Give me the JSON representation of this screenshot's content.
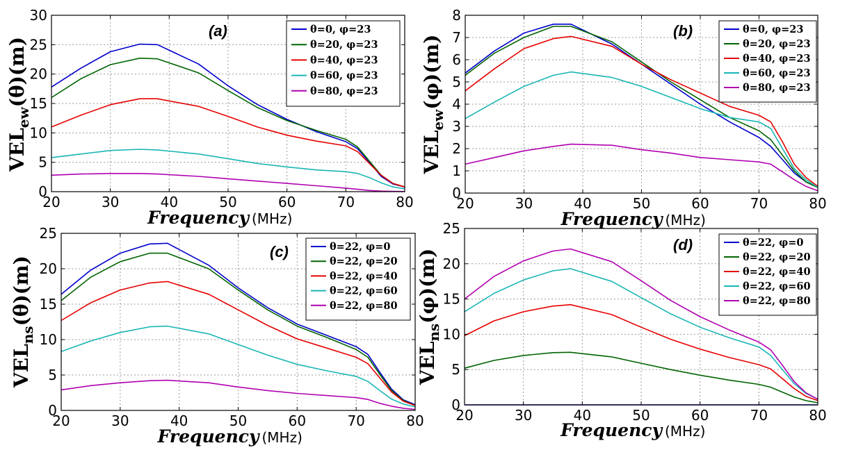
{
  "figure": {
    "x_unit": "(MHz)"
  },
  "chart_data": [
    {
      "type": "line",
      "panel_label": "(a)",
      "title": "",
      "ylabel_main": "VEL",
      "ylabel_sub": "ew",
      "ylabel_arg": "(θ)(m)",
      "xlabel": "Frequency",
      "xlim": [
        20,
        80
      ],
      "ylim": [
        0,
        30
      ],
      "xticks": [
        20,
        30,
        40,
        50,
        60,
        70,
        80
      ],
      "yticks": [
        0,
        5,
        10,
        15,
        20,
        25,
        30
      ],
      "grid": true,
      "legend_position": "top-right",
      "x": [
        20,
        25,
        30,
        35,
        38,
        45,
        50,
        55,
        60,
        65,
        70,
        72,
        74,
        76,
        78,
        80
      ],
      "series": [
        {
          "name": "θ=0, φ=23",
          "color": "#0000cc",
          "values": [
            17.8,
            21.0,
            23.8,
            25.1,
            25.0,
            21.7,
            18.0,
            14.8,
            12.3,
            10.2,
            8.5,
            7.3,
            5.0,
            2.6,
            1.3,
            0.8
          ]
        },
        {
          "name": "θ=20, φ=23",
          "color": "#006400",
          "values": [
            16.0,
            19.2,
            21.6,
            22.7,
            22.6,
            20.2,
            17.2,
            14.3,
            12.1,
            10.4,
            8.9,
            7.6,
            5.2,
            2.8,
            1.4,
            0.8
          ]
        },
        {
          "name": "θ=40, φ=23",
          "color": "#e60000",
          "values": [
            11.0,
            13.0,
            14.8,
            15.8,
            15.8,
            14.5,
            12.8,
            11.0,
            9.6,
            8.6,
            7.8,
            6.8,
            4.8,
            2.8,
            1.4,
            0.8
          ]
        },
        {
          "name": "θ=60, φ=23",
          "color": "#1ab5b5",
          "values": [
            5.8,
            6.4,
            7.0,
            7.2,
            7.1,
            6.4,
            5.6,
            4.8,
            4.2,
            3.7,
            3.4,
            3.1,
            2.4,
            1.5,
            0.8,
            0.5
          ]
        },
        {
          "name": "θ=80, φ=23",
          "color": "#b000b0",
          "values": [
            2.8,
            3.0,
            3.1,
            3.1,
            3.0,
            2.6,
            2.2,
            1.8,
            1.4,
            1.0,
            0.6,
            0.4,
            0.2,
            0.1,
            0.05,
            0.02
          ]
        }
      ]
    },
    {
      "type": "line",
      "panel_label": "(b)",
      "title": "",
      "ylabel_main": "VEL",
      "ylabel_sub": "ew",
      "ylabel_arg": "(φ)(m)",
      "xlabel": "Frequency",
      "xlim": [
        20,
        80
      ],
      "ylim": [
        0,
        8
      ],
      "xticks": [
        20,
        30,
        40,
        50,
        60,
        70,
        80
      ],
      "yticks": [
        0,
        1,
        2,
        3,
        4,
        5,
        6,
        7,
        8
      ],
      "grid": true,
      "legend_position": "top-right",
      "x": [
        20,
        25,
        30,
        35,
        38,
        45,
        50,
        55,
        60,
        65,
        70,
        72,
        74,
        76,
        78,
        80
      ],
      "series": [
        {
          "name": "θ=0, φ=23",
          "color": "#0000cc",
          "values": [
            5.4,
            6.4,
            7.2,
            7.6,
            7.6,
            6.7,
            5.8,
            4.9,
            4.0,
            3.2,
            2.5,
            2.1,
            1.5,
            0.9,
            0.5,
            0.25
          ]
        },
        {
          "name": "θ=20, φ=23",
          "color": "#006400",
          "values": [
            5.3,
            6.3,
            7.0,
            7.5,
            7.5,
            6.8,
            5.9,
            5.0,
            4.2,
            3.4,
            2.8,
            2.4,
            1.7,
            1.0,
            0.5,
            0.25
          ]
        },
        {
          "name": "θ=40, φ=23",
          "color": "#e60000",
          "values": [
            4.6,
            5.6,
            6.5,
            6.95,
            7.05,
            6.6,
            5.8,
            5.1,
            4.5,
            3.9,
            3.5,
            3.2,
            2.3,
            1.3,
            0.7,
            0.3
          ]
        },
        {
          "name": "θ=60, φ=23",
          "color": "#1ab5b5",
          "values": [
            3.35,
            4.1,
            4.8,
            5.3,
            5.45,
            5.2,
            4.8,
            4.3,
            3.8,
            3.4,
            3.2,
            2.9,
            2.0,
            1.1,
            0.6,
            0.25
          ]
        },
        {
          "name": "θ=80, φ=23",
          "color": "#b000b0",
          "values": [
            1.3,
            1.6,
            1.9,
            2.1,
            2.2,
            2.15,
            1.95,
            1.8,
            1.6,
            1.5,
            1.4,
            1.3,
            0.95,
            0.6,
            0.3,
            0.1
          ]
        }
      ]
    },
    {
      "type": "line",
      "panel_label": "(c)",
      "title": "",
      "ylabel_main": "VEL",
      "ylabel_sub": "ns",
      "ylabel_arg": "(θ)(m)",
      "xlabel": "Frequency",
      "xlim": [
        20,
        80
      ],
      "ylim": [
        0,
        25
      ],
      "xticks": [
        20,
        30,
        40,
        50,
        60,
        70,
        80
      ],
      "yticks": [
        0,
        5,
        10,
        15,
        20,
        25
      ],
      "grid": true,
      "legend_position": "top-right",
      "x": [
        20,
        25,
        30,
        35,
        38,
        45,
        50,
        55,
        60,
        65,
        70,
        72,
        74,
        76,
        78,
        80
      ],
      "series": [
        {
          "name": "θ=22, φ=0",
          "color": "#0000cc",
          "values": [
            16.4,
            19.8,
            22.2,
            23.5,
            23.6,
            20.5,
            17.3,
            14.5,
            12.2,
            10.6,
            9.0,
            7.9,
            5.4,
            3.0,
            1.5,
            0.8
          ]
        },
        {
          "name": "θ=22, φ=20",
          "color": "#006400",
          "values": [
            15.5,
            18.8,
            21.0,
            22.2,
            22.2,
            20.0,
            17.0,
            14.2,
            11.9,
            10.3,
            8.6,
            7.5,
            5.1,
            2.8,
            1.4,
            0.7
          ]
        },
        {
          "name": "θ=22, φ=40",
          "color": "#e60000",
          "values": [
            12.7,
            15.2,
            17.0,
            18.0,
            18.2,
            16.4,
            14.2,
            12.0,
            10.1,
            8.8,
            7.5,
            6.6,
            4.6,
            2.6,
            1.3,
            0.7
          ]
        },
        {
          "name": "θ=22, φ=60",
          "color": "#1ab5b5",
          "values": [
            8.3,
            9.8,
            11.0,
            11.8,
            11.9,
            10.8,
            9.3,
            7.8,
            6.5,
            5.6,
            4.8,
            4.1,
            2.8,
            1.6,
            0.9,
            0.5
          ]
        },
        {
          "name": "θ=22, φ=80",
          "color": "#b000b0",
          "values": [
            2.9,
            3.5,
            3.9,
            4.2,
            4.25,
            3.9,
            3.3,
            2.8,
            2.4,
            2.1,
            1.8,
            1.55,
            1.0,
            0.6,
            0.3,
            0.15
          ]
        }
      ]
    },
    {
      "type": "line",
      "panel_label": "(d)",
      "title": "",
      "ylabel_main": "VEL",
      "ylabel_sub": "ns",
      "ylabel_arg": "(φ)(m)",
      "xlabel": "Frequency",
      "xlim": [
        20,
        80
      ],
      "ylim": [
        0,
        25
      ],
      "xticks": [
        20,
        30,
        40,
        50,
        60,
        70,
        80
      ],
      "yticks": [
        0,
        5,
        10,
        15,
        20,
        25
      ],
      "grid": true,
      "legend_position": "top-right",
      "x": [
        20,
        25,
        30,
        35,
        38,
        45,
        50,
        55,
        60,
        65,
        70,
        72,
        74,
        76,
        78,
        80
      ],
      "series": [
        {
          "name": "θ=22, φ=0",
          "color": "#0000cc",
          "values": [
            0,
            0,
            0,
            0,
            0,
            0,
            0,
            0,
            0,
            0,
            0,
            0,
            0,
            0,
            0,
            0
          ]
        },
        {
          "name": "θ=22, φ=20",
          "color": "#006400",
          "values": [
            5.2,
            6.3,
            7.0,
            7.4,
            7.45,
            6.8,
            5.9,
            5.0,
            4.2,
            3.5,
            2.9,
            2.5,
            1.8,
            1.1,
            0.6,
            0.3
          ]
        },
        {
          "name": "θ=22, φ=40",
          "color": "#e60000",
          "values": [
            9.8,
            11.9,
            13.2,
            14.0,
            14.2,
            12.8,
            11.0,
            9.3,
            7.9,
            6.7,
            5.7,
            5.1,
            3.7,
            2.3,
            1.2,
            0.6
          ]
        },
        {
          "name": "θ=22, φ=60",
          "color": "#1ab5b5",
          "values": [
            13.2,
            15.8,
            17.7,
            19.0,
            19.3,
            17.5,
            15.2,
            12.9,
            11.0,
            9.5,
            8.2,
            7.0,
            5.0,
            3.0,
            1.6,
            0.8
          ]
        },
        {
          "name": "θ=22, φ=80",
          "color": "#b000b0",
          "values": [
            15.0,
            18.2,
            20.4,
            21.8,
            22.1,
            20.3,
            17.6,
            14.8,
            12.5,
            10.6,
            8.9,
            7.8,
            5.6,
            3.3,
            1.7,
            0.8
          ]
        }
      ]
    }
  ]
}
